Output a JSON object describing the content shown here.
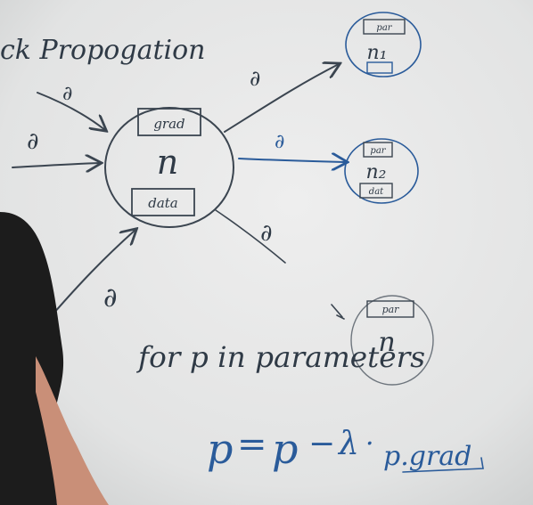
{
  "board": {
    "title_fragment": "ck Propogation",
    "partial_symbol": "∂",
    "center_node": {
      "grad_label": "grad",
      "name": "n",
      "data_label": "data"
    },
    "out_nodes": [
      {
        "top_label": "par",
        "name": "n₁"
      },
      {
        "top_label": "par",
        "name": "n₂",
        "bottom_label": "dat"
      },
      {
        "top_label": "par",
        "name": "n"
      }
    ],
    "loop_line": "for p in parameters",
    "update_equation": {
      "lhs": "p",
      "equals": "=",
      "rhs_p": "p",
      "minus": "−",
      "lambda": "λ",
      "dot": "·",
      "grad_term": "p.grad"
    }
  },
  "colors": {
    "whiteboard": "#e7e8e8",
    "dark_ink": "#2f3a46",
    "blue_ink": "#2a5b9a",
    "person": "#1c1c1c",
    "skin": "#c98f78"
  }
}
